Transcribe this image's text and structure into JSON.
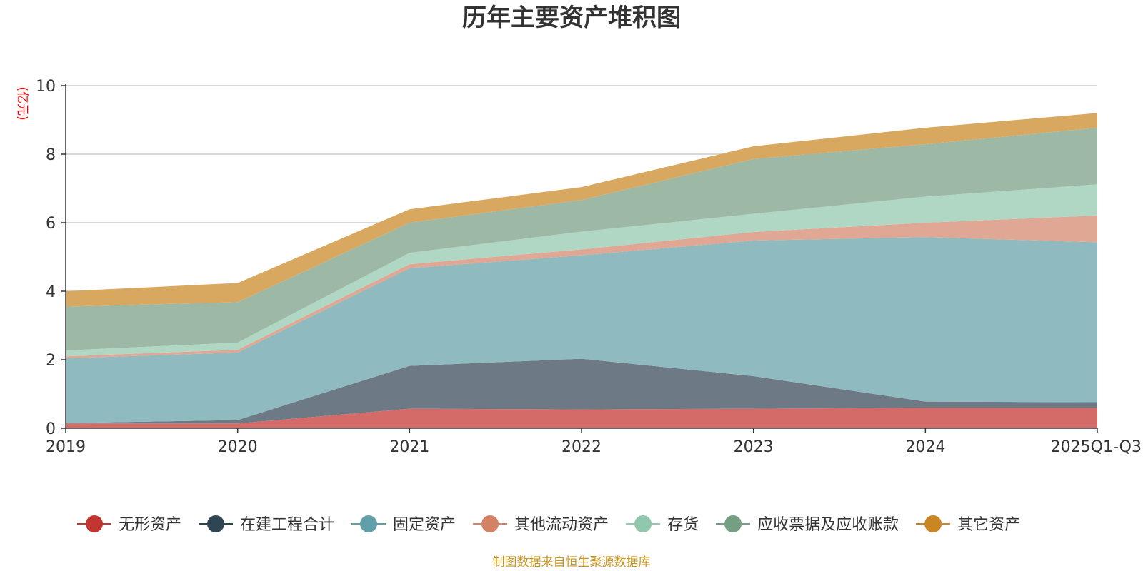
{
  "chart_data": {
    "type": "area",
    "stacked": true,
    "title": "历年主要资产堆积图",
    "ylabel": "(亿元)",
    "ylim": [
      0,
      10
    ],
    "yticks": [
      0,
      2,
      4,
      6,
      8,
      10
    ],
    "categories": [
      "2019",
      "2020",
      "2021",
      "2022",
      "2023",
      "2024",
      "2025Q1-Q3"
    ],
    "series": [
      {
        "name": "无形资产",
        "color": "#c23531",
        "fill": "#d46b68",
        "values": [
          0.14,
          0.14,
          0.57,
          0.55,
          0.57,
          0.6,
          0.6
        ]
      },
      {
        "name": "在建工程合计",
        "color": "#2f4554",
        "fill": "#6d7a85",
        "values": [
          0.01,
          0.1,
          1.25,
          1.48,
          0.95,
          0.18,
          0.16
        ]
      },
      {
        "name": "固定资产",
        "color": "#61a0a8",
        "fill": "#8fbac0",
        "values": [
          1.89,
          1.97,
          2.85,
          3.02,
          3.96,
          4.8,
          4.67
        ]
      },
      {
        "name": "其他流动资产",
        "color": "#d48265",
        "fill": "#e0a794",
        "values": [
          0.06,
          0.08,
          0.12,
          0.17,
          0.25,
          0.42,
          0.78
        ]
      },
      {
        "name": "存货",
        "color": "#91c7ae",
        "fill": "#b0d7c4",
        "values": [
          0.17,
          0.21,
          0.33,
          0.52,
          0.53,
          0.76,
          0.91
        ]
      },
      {
        "name": "应收票据及应收账款",
        "color": "#749f83",
        "fill": "#9db8a5",
        "values": [
          1.28,
          1.18,
          0.88,
          0.92,
          1.6,
          1.53,
          1.65
        ]
      },
      {
        "name": "其它资产",
        "color": "#ca8622",
        "fill": "#d8a860",
        "values": [
          0.45,
          0.56,
          0.39,
          0.38,
          0.37,
          0.48,
          0.43
        ]
      }
    ]
  },
  "source_text": "制图数据来自恒生聚源数据库",
  "source_color": "#c8961e",
  "unit_color": "#ff0000"
}
